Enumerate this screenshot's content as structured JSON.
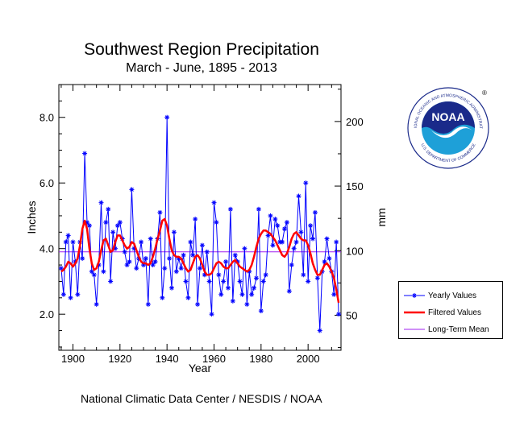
{
  "title": "Southwest Region Precipitation",
  "subtitle": "March - June, 1895 - 2013",
  "footer": "National Climatic Data Center / NESDIS / NOAA",
  "logo": {
    "text": "NOAA",
    "ring_text": "NATIONAL OCEANIC AND ATMOSPHERIC ADMINISTRATION",
    "ring_text_bottom": "U.S. DEPARTMENT OF COMMERCE",
    "registered": "®"
  },
  "legend": {
    "yearly": "Yearly Values",
    "filtered": "Filtered Values",
    "mean": "Long-Term Mean"
  },
  "colors": {
    "yearly": "#0000ff",
    "filtered": "#ff0000",
    "mean": "#a020f0",
    "noaa_navy": "#1a2a8a",
    "noaa_sky": "#1ea0d8"
  },
  "chart_data": {
    "type": "line",
    "title": "Southwest Region Precipitation",
    "subtitle": "March - June, 1895 - 2013",
    "xlabel": "Year",
    "ylabel": "Inches",
    "ylabel_right": "mm",
    "xlim": [
      1894,
      2014
    ],
    "ylim": [
      0.9,
      9.0
    ],
    "x_ticks": [
      1900,
      1920,
      1940,
      1960,
      1980,
      2000
    ],
    "y_ticks": [
      2.0,
      4.0,
      6.0,
      8.0
    ],
    "y_ticks_right": [
      50,
      100,
      150,
      200
    ],
    "grid": false,
    "legend_position": "right",
    "x_start": 1895,
    "series": [
      {
        "name": "Yearly Values",
        "values": [
          3.4,
          2.6,
          4.2,
          4.4,
          2.5,
          4.2,
          3.6,
          2.6,
          4.2,
          3.7,
          6.9,
          4.8,
          4.7,
          3.3,
          3.2,
          2.3,
          3.5,
          5.4,
          3.3,
          4.8,
          5.2,
          3.0,
          4.5,
          4.0,
          4.7,
          4.8,
          4.3,
          3.9,
          3.5,
          3.6,
          5.8,
          4.0,
          3.4,
          3.7,
          4.2,
          3.5,
          3.7,
          2.3,
          4.3,
          3.5,
          3.6,
          4.3,
          5.1,
          2.5,
          3.4,
          8.0,
          3.7,
          2.8,
          4.5,
          3.3,
          3.7,
          3.4,
          3.8,
          3.0,
          2.5,
          4.2,
          3.8,
          4.9,
          2.3,
          3.4,
          4.1,
          3.2,
          3.9,
          3.0,
          2.0,
          5.4,
          4.8,
          3.2,
          2.6,
          3.0,
          3.6,
          2.8,
          5.2,
          2.4,
          3.8,
          3.6,
          3.0,
          2.6,
          4.0,
          2.3,
          3.3,
          2.6,
          2.8,
          3.1,
          5.2,
          2.1,
          3.0,
          3.2,
          4.4,
          5.0,
          4.1,
          4.9,
          4.7,
          4.2,
          4.2,
          4.6,
          4.8,
          2.7,
          3.5,
          4.0,
          4.2,
          5.6,
          4.5,
          3.2,
          6.0,
          3.0,
          4.7,
          4.3,
          5.1,
          3.1,
          1.5,
          3.3,
          3.6,
          4.3,
          3.7,
          3.3,
          2.6,
          4.2,
          2.0
        ]
      },
      {
        "name": "Filtered Values",
        "values": [
          3.3,
          3.35,
          3.45,
          3.6,
          3.55,
          3.45,
          3.55,
          3.7,
          4.1,
          4.6,
          4.85,
          4.6,
          4.0,
          3.55,
          3.35,
          3.4,
          3.6,
          3.95,
          4.25,
          4.3,
          4.1,
          3.9,
          3.95,
          4.2,
          4.4,
          4.4,
          4.25,
          4.1,
          4.0,
          4.05,
          4.2,
          4.15,
          3.95,
          3.75,
          3.6,
          3.55,
          3.55,
          3.5,
          3.55,
          3.75,
          4.0,
          4.3,
          4.55,
          4.85,
          4.9,
          4.7,
          4.3,
          3.95,
          3.8,
          3.75,
          3.75,
          3.7,
          3.55,
          3.4,
          3.3,
          3.35,
          3.55,
          3.75,
          3.8,
          3.7,
          3.5,
          3.3,
          3.2,
          3.2,
          3.25,
          3.4,
          3.55,
          3.6,
          3.55,
          3.45,
          3.4,
          3.4,
          3.5,
          3.6,
          3.65,
          3.55,
          3.45,
          3.4,
          3.35,
          3.3,
          3.35,
          3.5,
          3.75,
          4.05,
          4.3,
          4.45,
          4.55,
          4.55,
          4.5,
          4.45,
          4.35,
          4.25,
          4.1,
          3.95,
          3.8,
          3.75,
          3.85,
          4.05,
          4.3,
          4.45,
          4.5,
          4.4,
          4.3,
          4.25,
          4.25,
          4.1,
          3.85,
          3.55,
          3.35,
          3.2,
          3.2,
          3.35,
          3.5,
          3.55,
          3.45,
          3.3,
          3.1,
          2.75,
          2.35
        ]
      },
      {
        "name": "Long-Term Mean",
        "values": [
          3.9
        ]
      }
    ]
  }
}
